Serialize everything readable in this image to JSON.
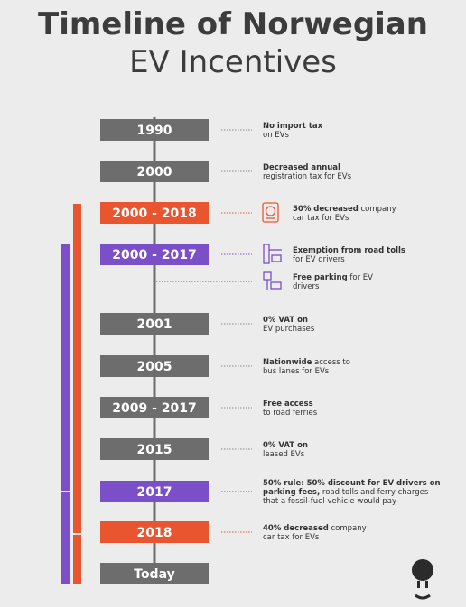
{
  "title": {
    "line1": "Timeline of Norwegian",
    "line2": "EV Incentives"
  },
  "events": [
    {
      "label": "1990",
      "color": "#6d6d6d",
      "incentives": [
        {
          "lines": [
            [
              {
                "text": "No import tax",
                "bold": true
              }
            ],
            [
              {
                "text": "on EVs",
                "bold": false
              }
            ]
          ]
        }
      ]
    },
    {
      "label": "2000",
      "color": "#6d6d6d",
      "incentives": [
        {
          "lines": [
            [
              {
                "text": "Decreased annual",
                "bold": true
              }
            ],
            [
              {
                "text": "registration tax for EVs",
                "bold": false
              }
            ]
          ]
        }
      ]
    },
    {
      "label": "2000 - 2018",
      "color": "#e8552f",
      "incentives": [
        {
          "lines": [
            [
              {
                "text": "50% decreased",
                "bold": true
              },
              {
                "text": " company",
                "bold": false
              }
            ],
            [
              {
                "text": "car tax for EVs",
                "bold": false
              }
            ]
          ]
        }
      ]
    },
    {
      "label": "2000 - 2017",
      "color": "#7b4fc8",
      "incentives": [
        {
          "lines": [
            [
              {
                "text": "Exemption from road tolls",
                "bold": true
              }
            ],
            [
              {
                "text": "for EV drivers",
                "bold": false
              }
            ]
          ]
        },
        {
          "lines": [
            [
              {
                "text": "Free parking",
                "bold": true
              },
              {
                "text": " for EV",
                "bold": false
              }
            ],
            [
              {
                "text": "drivers",
                "bold": false
              }
            ]
          ]
        }
      ]
    },
    {
      "label": "2001",
      "color": "#6d6d6d",
      "incentives": [
        {
          "lines": [
            [
              {
                "text": "0% VAT on",
                "bold": true
              }
            ],
            [
              {
                "text": "EV purchases",
                "bold": false
              }
            ]
          ]
        }
      ]
    },
    {
      "label": "2005",
      "color": "#6d6d6d",
      "incentives": [
        {
          "lines": [
            [
              {
                "text": "Nationwide",
                "bold": true
              },
              {
                "text": " access to",
                "bold": false
              }
            ],
            [
              {
                "text": "bus lanes for EVs",
                "bold": false
              }
            ]
          ]
        }
      ]
    },
    {
      "label": "2009 - 2017",
      "color": "#6d6d6d",
      "incentives": [
        {
          "lines": [
            [
              {
                "text": "Free access",
                "bold": true
              }
            ],
            [
              {
                "text": "to road ferries",
                "bold": false
              }
            ]
          ]
        }
      ]
    },
    {
      "label": "2015",
      "color": "#6d6d6d",
      "incentives": [
        {
          "lines": [
            [
              {
                "text": "0% VAT on",
                "bold": true
              }
            ],
            [
              {
                "text": "leased EVs",
                "bold": false
              }
            ]
          ]
        }
      ]
    },
    {
      "label": "2017",
      "color": "#7b4fc8",
      "incentives": [
        {
          "lines": [
            [
              {
                "text": "50% rule: 50% discount for EV drivers on",
                "bold": true
              }
            ],
            [
              {
                "text": "parking fees,",
                "bold": true
              },
              {
                "text": " road tolls and ferry charges",
                "bold": false
              }
            ],
            [
              {
                "text": "that a fossil-fuel vehicle would pay",
                "bold": false
              }
            ]
          ]
        }
      ]
    },
    {
      "label": "2018",
      "color": "#e8552f",
      "incentives": [
        {
          "lines": [
            [
              {
                "text": "40% decreased",
                "bold": true
              },
              {
                "text": " company",
                "bold": false
              }
            ],
            [
              {
                "text": "car tax for EVs",
                "bold": false
              }
            ]
          ]
        }
      ]
    },
    {
      "label": "Today",
      "color": "#6d6d6d",
      "incentives": []
    }
  ]
}
